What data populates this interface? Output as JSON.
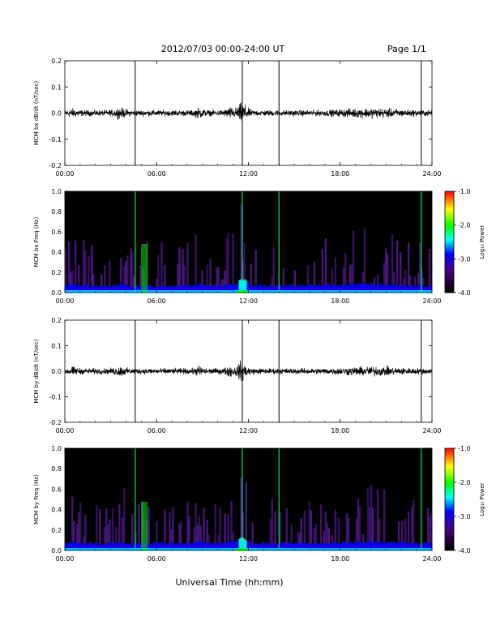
{
  "header": {
    "date_range": "2012/07/03  00:00-24:00 UT",
    "page": "Page 1/1"
  },
  "x_axis": {
    "label": "Universal Time (hh:mm)",
    "ticks": [
      "00:00",
      "06:00",
      "12:00",
      "18:00",
      "24:00"
    ]
  },
  "colorbar": {
    "ticks": [
      "-1.0",
      "-2.0",
      "-3.0",
      "-4.0"
    ],
    "colors": [
      "#ff0000",
      "#ffff00",
      "#00ff00",
      "#00ffff",
      "#0000ff",
      "#000000"
    ]
  },
  "chart_data": [
    {
      "type": "line",
      "ylabel": "MCM bx dB/dt (nT/sec)",
      "xlim": [
        0,
        24
      ],
      "ylim": [
        -0.2,
        0.2
      ],
      "yticks": [
        "0.2",
        "0.1",
        "0.0",
        "-0.1",
        "-0.2"
      ],
      "series_color": "#000000",
      "spikes_hours": [
        4.6,
        11.6,
        14.0,
        23.3
      ]
    },
    {
      "type": "heatmap",
      "ylabel": "MCM bx Freq (Hz)",
      "xlim": [
        0,
        24
      ],
      "ylim": [
        0.0,
        1.0
      ],
      "yticks": [
        "1.0",
        "0.8",
        "0.6",
        "0.4",
        "0.2",
        "0.0"
      ],
      "colorbar_label": "Log₁₀ Power",
      "color_range": [
        -4.0,
        -1.0
      ]
    },
    {
      "type": "line",
      "ylabel": "MCM by dB/dt (nT/sec)",
      "xlim": [
        0,
        24
      ],
      "ylim": [
        -0.2,
        0.2
      ],
      "yticks": [
        "0.2",
        "0.1",
        "0.0",
        "-0.1",
        "-0.2"
      ],
      "series_color": "#000000",
      "spikes_hours": [
        4.6,
        11.6,
        14.0,
        23.3
      ]
    },
    {
      "type": "heatmap",
      "ylabel": "MCM by Freq (Hz)",
      "xlim": [
        0,
        24
      ],
      "ylim": [
        0.0,
        1.0
      ],
      "yticks": [
        "1.0",
        "0.8",
        "0.6",
        "0.4",
        "0.2",
        "0.0"
      ],
      "colorbar_label": "Log₁₀ Power",
      "color_range": [
        -4.0,
        -1.0
      ]
    }
  ]
}
